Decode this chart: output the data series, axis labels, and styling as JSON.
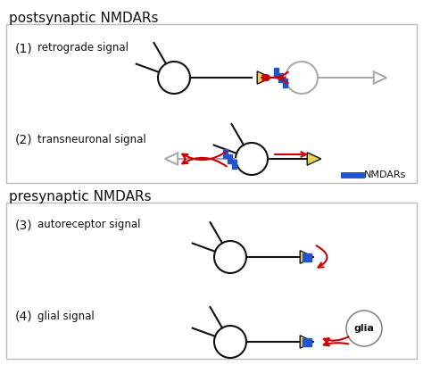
{
  "title_post": "postsynaptic NMDARs",
  "title_pre": "presynaptic NMDARs",
  "label1": "(1)",
  "label2": "(2)",
  "label3": "(3)",
  "label4": "(4)",
  "signal1": "retrograde signal",
  "signal2": "transneuronal signal",
  "signal3": "autoreceptor signal",
  "signal4": "glial signal",
  "legend_label": "NMDARs",
  "color_yellow": "#E8D44D",
  "color_red": "#CC0000",
  "color_blue": "#2255CC",
  "color_gray": "#aaaaaa",
  "color_black": "#111111",
  "color_bg": "#FFFFFF"
}
